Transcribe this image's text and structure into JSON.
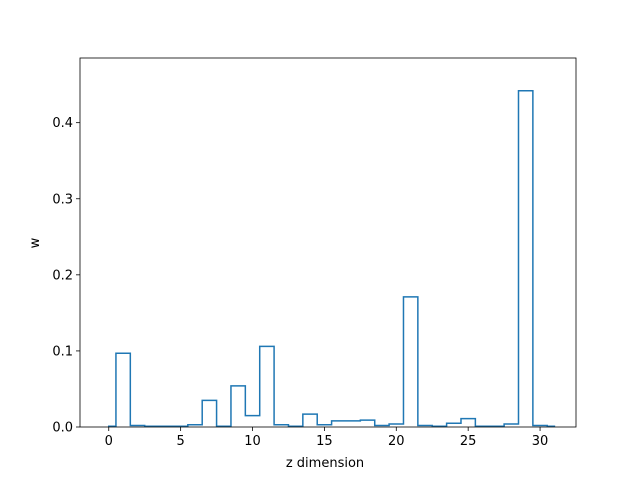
{
  "chart_data": {
    "type": "line",
    "style": "step-histogram",
    "xlabel": "z dimension",
    "ylabel": "w",
    "xlim": [
      -2.0,
      32.5
    ],
    "ylim": [
      0,
      0.485
    ],
    "xticks": [
      0,
      5,
      10,
      15,
      20,
      25,
      30
    ],
    "yticks": [
      0.0,
      0.1,
      0.2,
      0.3,
      0.4
    ],
    "ytick_labels": [
      "0.0",
      "0.1",
      "0.2",
      "0.3",
      "0.4"
    ],
    "grid": false,
    "line_color": "#1f77b4",
    "bin_edges": [
      0,
      0.5,
      1.5,
      2.5,
      3.5,
      4.5,
      5.5,
      6.5,
      7.5,
      8.5,
      9.5,
      10.5,
      11.5,
      12.5,
      13.5,
      14.5,
      15.5,
      16.5,
      17.5,
      18.5,
      19.5,
      20.5,
      21.5,
      22.5,
      23.5,
      24.5,
      25.5,
      26.5,
      27.5,
      28.5,
      29.5,
      30.5,
      31
    ],
    "values": [
      0.001,
      0.097,
      0.002,
      0.001,
      0.001,
      0.001,
      0.003,
      0.035,
      0.001,
      0.054,
      0.015,
      0.106,
      0.003,
      0.001,
      0.017,
      0.003,
      0.008,
      0.008,
      0.009,
      0.002,
      0.004,
      0.171,
      0.002,
      0.001,
      0.005,
      0.011,
      0.001,
      0.001,
      0.004,
      0.442,
      0.002,
      0.001
    ]
  }
}
